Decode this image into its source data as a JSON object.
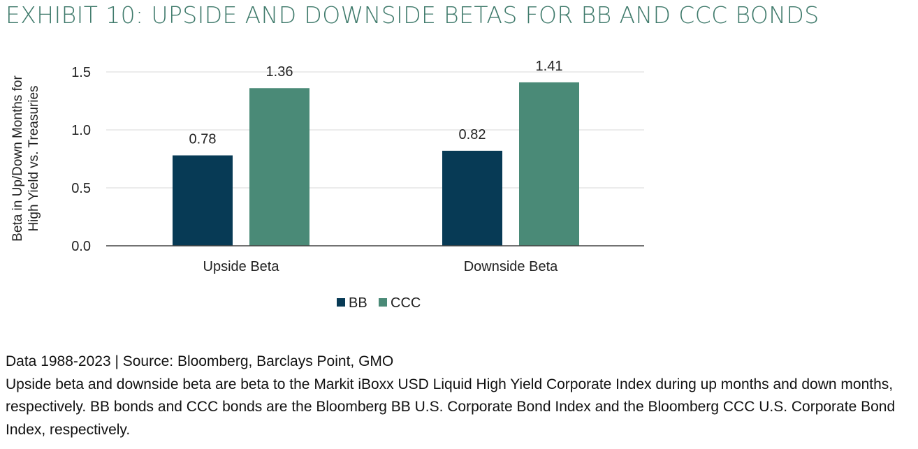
{
  "title": "EXHIBIT 10: UPSIDE AND DOWNSIDE BETAS FOR BB AND CCC BONDS",
  "chart_data": {
    "type": "bar",
    "title": "",
    "xlabel": "",
    "ylabel_lines": [
      "Beta in Up/Down Months for",
      "High Yield vs. Treasuries"
    ],
    "categories": [
      "Upside Beta",
      "Downside Beta"
    ],
    "series": [
      {
        "name": "BB",
        "values": [
          0.78,
          0.82
        ],
        "color": "#073a55"
      },
      {
        "name": "CCC",
        "values": [
          1.36,
          1.41
        ],
        "color": "#4a8a77"
      }
    ],
    "data_labels": [
      [
        "0.78",
        "0.82"
      ],
      [
        "1.36",
        "1.41"
      ]
    ],
    "ylim": [
      0,
      1.5
    ],
    "yticks": [
      0,
      0.5,
      1.0,
      1.5
    ],
    "ytick_labels": [
      "0.0",
      "0.5",
      "1.0",
      "1.5"
    ],
    "grid": true,
    "legend_position": "bottom-center"
  },
  "footnote": {
    "source": "Data 1988-2023 | Source: Bloomberg, Barclays Point, GMO",
    "description": "Upside beta and downside beta are beta to the Markit iBoxx USD Liquid High Yield Corporate Index during up months and down months, respectively. BB bonds and CCC bonds are the Bloomberg BB U.S. Corporate Bond Index and the Bloomberg CCC U.S. Corporate Bond Index, respectively."
  }
}
